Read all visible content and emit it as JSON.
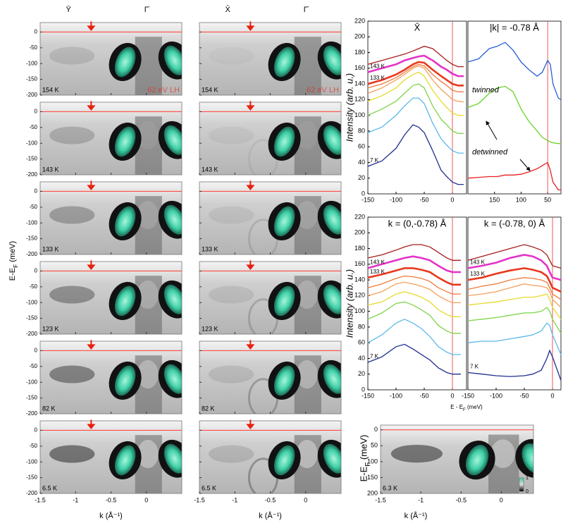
{
  "chart_data": [
    {
      "type": "map-grid",
      "columns": [
        {
          "labels": [
            {
              "text": "Ȳ",
              "k": -1.1
            },
            {
              "text": "Γ̄",
              "k": 0
            }
          ]
        },
        {
          "labels": [
            {
              "text": "X̄",
              "k": -1.1
            },
            {
              "text": "Γ̄",
              "k": 0
            }
          ]
        }
      ],
      "temperatures": [
        "154 K",
        "143 K",
        "133 K",
        "123 K",
        "82 K",
        "6.5 K"
      ],
      "annotation": "62 eV LH",
      "arrow_k": -0.78,
      "fermi_line": 0,
      "xlim": [
        -1.5,
        0.5
      ],
      "xticks": [
        -1.5,
        -1,
        -0.5,
        0
      ],
      "ylim": [
        -200,
        30
      ],
      "yticks": [
        0,
        -50,
        -100,
        -150,
        -200
      ],
      "xlabel": "k (Å⁻¹)",
      "ylabel": "E-E_F (meV)"
    },
    {
      "type": "line",
      "title": "X̄",
      "ylabel": "Intensity (arb. u.)",
      "vline": 0,
      "xlim": [
        -150,
        25
      ],
      "xticks": [
        -150,
        -100,
        -50,
        0
      ],
      "ylim": [
        0,
        220
      ],
      "yticks": [
        0,
        20,
        40,
        60,
        80,
        100,
        120,
        140,
        160,
        180,
        200,
        220
      ],
      "x": [
        -150,
        -125,
        -100,
        -85,
        -70,
        -60,
        -50,
        -35,
        -20,
        -10,
        0,
        10,
        20
      ],
      "series": [
        {
          "name": "7 K",
          "color": "#1f2f8f",
          "values": [
            35,
            42,
            58,
            75,
            88,
            85,
            78,
            55,
            30,
            22,
            15,
            12,
            12
          ]
        },
        {
          "color": "#5bb8e8",
          "values": [
            78,
            85,
            100,
            112,
            122,
            122,
            115,
            90,
            70,
            62,
            55,
            52,
            52
          ]
        },
        {
          "color": "#7fd44a",
          "values": [
            100,
            108,
            118,
            128,
            138,
            140,
            135,
            112,
            95,
            88,
            80,
            77,
            77
          ]
        },
        {
          "color": "#e6d92a",
          "values": [
            118,
            125,
            135,
            145,
            152,
            155,
            150,
            132,
            118,
            110,
            103,
            100,
            100
          ]
        },
        {
          "color": "#f5a05a",
          "values": [
            128,
            135,
            145,
            152,
            160,
            163,
            160,
            145,
            133,
            127,
            120,
            118,
            117
          ]
        },
        {
          "color": "#ef7a3b",
          "values": [
            135,
            140,
            148,
            155,
            162,
            165,
            163,
            152,
            143,
            138,
            132,
            130,
            130
          ]
        },
        {
          "name": "133 K",
          "color": "#e8381d",
          "bold": true,
          "values": [
            140,
            145,
            152,
            158,
            165,
            168,
            167,
            158,
            150,
            145,
            140,
            138,
            138
          ]
        },
        {
          "name": "143 K",
          "color": "#e532c8",
          "bold": true,
          "values": [
            155,
            160,
            165,
            170,
            173,
            175,
            176,
            170,
            162,
            158,
            153,
            150,
            150
          ]
        },
        {
          "color": "#a51c1c",
          "values": [
            165,
            170,
            175,
            178,
            182,
            185,
            188,
            185,
            176,
            170,
            165,
            162,
            162
          ]
        }
      ]
    },
    {
      "type": "line",
      "title": "|k| = -0.78 Å",
      "vline": 50,
      "annotations": [
        "twinned",
        "detwinned"
      ],
      "xlim": [
        200,
        25
      ],
      "xticks": [
        150,
        100,
        50
      ],
      "ylim": [
        0,
        220
      ],
      "x": [
        200,
        180,
        160,
        145,
        130,
        115,
        100,
        85,
        70,
        60,
        50,
        45,
        40,
        30,
        25
      ],
      "series": [
        {
          "color": "#2a5fd8",
          "values": [
            168,
            172,
            185,
            188,
            193,
            183,
            168,
            158,
            150,
            155,
            170,
            165,
            140,
            122,
            120
          ]
        },
        {
          "color": "#66d42a",
          "values": [
            110,
            115,
            128,
            135,
            137,
            130,
            108,
            92,
            80,
            72,
            68,
            66,
            65,
            64,
            64
          ]
        },
        {
          "color": "#e82020",
          "values": [
            20,
            21,
            22,
            22,
            24,
            24,
            25,
            28,
            32,
            36,
            40,
            30,
            15,
            5,
            5
          ]
        }
      ]
    },
    {
      "type": "line",
      "title": "k = (0,-0.78) Å",
      "ylabel": "Intensity (arb. u.)",
      "xlabel": "E - E_F (meV)",
      "vline": 0,
      "xlim": [
        -150,
        25
      ],
      "xticks": [
        -150,
        -100,
        -50,
        0
      ],
      "ylim": [
        0,
        220
      ],
      "yticks": [
        0,
        20,
        40,
        60,
        80,
        100,
        120,
        140,
        160,
        180,
        200,
        220
      ],
      "x": [
        -150,
        -125,
        -100,
        -85,
        -70,
        -55,
        -40,
        -25,
        -10,
        0,
        15
      ],
      "series": [
        {
          "name": "7 K",
          "color": "#1f2f8f",
          "values": [
            35,
            42,
            55,
            58,
            52,
            45,
            38,
            28,
            22,
            20,
            20
          ]
        },
        {
          "color": "#5bb8e8",
          "values": [
            60,
            70,
            85,
            90,
            85,
            78,
            68,
            55,
            48,
            45,
            45
          ]
        },
        {
          "color": "#7fd44a",
          "values": [
            90,
            98,
            110,
            112,
            108,
            102,
            95,
            82,
            75,
            72,
            72
          ]
        },
        {
          "color": "#e6d92a",
          "values": [
            108,
            112,
            122,
            125,
            122,
            118,
            112,
            102,
            96,
            93,
            93
          ]
        },
        {
          "color": "#f5a05a",
          "values": [
            120,
            125,
            135,
            137,
            135,
            132,
            128,
            120,
            114,
            111,
            111
          ]
        },
        {
          "color": "#ef7a3b",
          "values": [
            130,
            135,
            142,
            145,
            144,
            142,
            138,
            130,
            125,
            122,
            122
          ]
        },
        {
          "name": "133 K",
          "color": "#e8381d",
          "bold": true,
          "values": [
            143,
            147,
            152,
            155,
            155,
            153,
            150,
            143,
            137,
            134,
            134
          ]
        },
        {
          "name": "143 K",
          "color": "#e532c8",
          "bold": true,
          "values": [
            155,
            160,
            165,
            168,
            170,
            168,
            165,
            158,
            152,
            150,
            150
          ]
        },
        {
          "color": "#a51c1c",
          "values": [
            168,
            172,
            178,
            182,
            185,
            185,
            182,
            175,
            168,
            165,
            165
          ]
        }
      ]
    },
    {
      "type": "line",
      "title": "k = (-0.78, 0) Å",
      "vline": 0,
      "xlim": [
        -150,
        15
      ],
      "xticks": [
        -150,
        -100,
        -50,
        0
      ],
      "ylim": [
        0,
        220
      ],
      "x": [
        -150,
        -125,
        -100,
        -75,
        -50,
        -35,
        -20,
        -10,
        -5,
        0,
        15
      ],
      "series": [
        {
          "name": "7 K",
          "color": "#1f2f8f",
          "values": [
            22,
            20,
            18,
            17,
            18,
            20,
            25,
            40,
            50,
            42,
            12
          ]
        },
        {
          "color": "#5bb8e8",
          "values": [
            60,
            62,
            62,
            65,
            68,
            70,
            75,
            85,
            82,
            70,
            45
          ]
        },
        {
          "color": "#7fd44a",
          "values": [
            88,
            90,
            92,
            95,
            98,
            98,
            100,
            105,
            100,
            90,
            72
          ]
        },
        {
          "color": "#e6d92a",
          "values": [
            108,
            110,
            112,
            115,
            118,
            118,
            120,
            122,
            115,
            105,
            90
          ]
        },
        {
          "color": "#f5a05a",
          "values": [
            120,
            122,
            125,
            130,
            135,
            133,
            132,
            130,
            125,
            115,
            105
          ]
        },
        {
          "color": "#ef7a3b",
          "values": [
            128,
            132,
            135,
            140,
            143,
            142,
            140,
            137,
            130,
            122,
            115
          ]
        },
        {
          "name": "133 K",
          "color": "#e8381d",
          "bold": true,
          "values": [
            140,
            143,
            148,
            152,
            155,
            153,
            150,
            145,
            138,
            130,
            125
          ]
        },
        {
          "name": "143 K",
          "color": "#e532c8",
          "bold": true,
          "values": [
            155,
            158,
            162,
            168,
            172,
            170,
            165,
            158,
            150,
            143,
            140
          ]
        },
        {
          "color": "#a51c1c",
          "values": [
            165,
            170,
            175,
            180,
            185,
            182,
            178,
            172,
            165,
            158,
            155
          ]
        }
      ]
    },
    {
      "type": "map",
      "temperature": "6.3 K",
      "fermi_line": 0,
      "xlim": [
        -1.5,
        0.4
      ],
      "xticks": [
        -1.5,
        -1,
        -0.5,
        0
      ],
      "ylim": [
        200,
        -15
      ],
      "yticks": [
        0,
        50,
        100,
        150,
        200
      ],
      "xlabel": "k (Å⁻¹)",
      "ylabel": "E-E_F (meV)",
      "cticks": [
        0,
        1
      ]
    }
  ]
}
